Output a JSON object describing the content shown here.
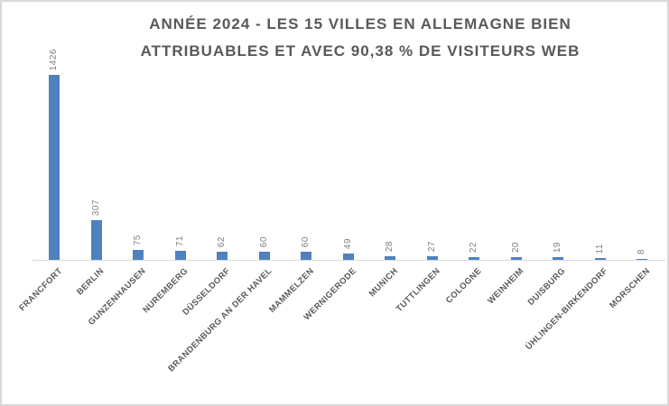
{
  "chart": {
    "title_lines": [
      "ANNÉE 2024 - LES 15 VILLES EN ALLEMAGNE BIEN",
      "ATTRIBUABLES ET AVEC 90,38 % DE VISITEURS WEB"
    ]
  },
  "colors": {
    "bar": "#4e81bd",
    "value_label": "#7f7f7f",
    "category_label": "#595959",
    "title": "#595959",
    "axis_line": "#d9d9d9",
    "border": "#d9d9d9",
    "background": "#ffffff"
  },
  "chart_data": {
    "type": "bar",
    "title": "ANNÉE 2024 - LES 15 VILLES EN ALLEMAGNE BIEN ATTRIBUABLES ET AVEC 90,38 % DE VISITEURS WEB",
    "categories": [
      "FRANCFORT",
      "BERLIN",
      "GUNZENHAUSEN",
      "NUREMBERG",
      "DÜSSELDORF",
      "BRANDENBURG AN DER HAVEL",
      "MAMMELZEN",
      "WERNIGERODE",
      "MUNICH",
      "TUTTLINGEN",
      "COLOGNE",
      "WEINHEIM",
      "DUISBURG",
      "ÜHLINGEN-BIRKENDORF",
      "MORSCHEN"
    ],
    "values": [
      1426,
      307,
      75,
      71,
      62,
      60,
      60,
      49,
      28,
      27,
      22,
      20,
      19,
      11,
      8
    ],
    "xlabel": "",
    "ylabel": "",
    "ylim": [
      0,
      1500
    ],
    "grid": false,
    "legend": false,
    "value_labels_shown": true,
    "value_labels_rotation": 90,
    "category_labels_rotation": 45
  }
}
